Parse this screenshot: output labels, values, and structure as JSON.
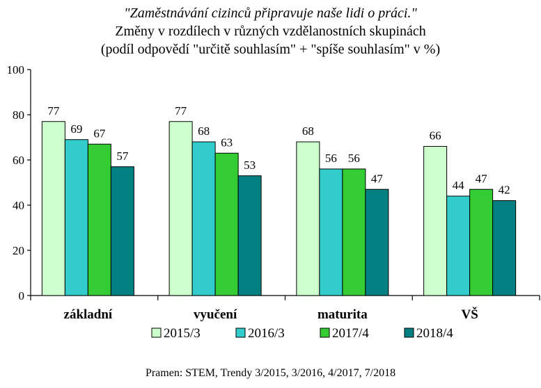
{
  "chart_data": {
    "type": "bar",
    "title": "\"Zaměstnávání cizinců připravuje naše lidi o práci.\"",
    "subtitle": "Změny v rozdílech v různých vzdělanostních skupinách",
    "subtitle2": "(podíl odpovědí \"určitě souhlasím\" + \"spíše souhlasím\" v %)",
    "categories": [
      "základní",
      "vyučení",
      "maturita",
      "VŠ"
    ],
    "series": [
      {
        "name": "2015/3",
        "color": "#ccffcc",
        "values": [
          77,
          77,
          68,
          66
        ]
      },
      {
        "name": "2016/3",
        "color": "#33cccc",
        "values": [
          69,
          68,
          56,
          44
        ]
      },
      {
        "name": "2017/4",
        "color": "#33cc33",
        "values": [
          67,
          63,
          56,
          47
        ]
      },
      {
        "name": "2018/4",
        "color": "#008080",
        "values": [
          57,
          53,
          47,
          42
        ]
      }
    ],
    "ylim": [
      0,
      100
    ],
    "yticks": [
      0,
      20,
      40,
      60,
      80,
      100
    ],
    "grid": false,
    "legend_position": "bottom",
    "source": "Pramen: STEM, Trendy 3/2015, 3/2016, 4/2017, 7/2018"
  }
}
